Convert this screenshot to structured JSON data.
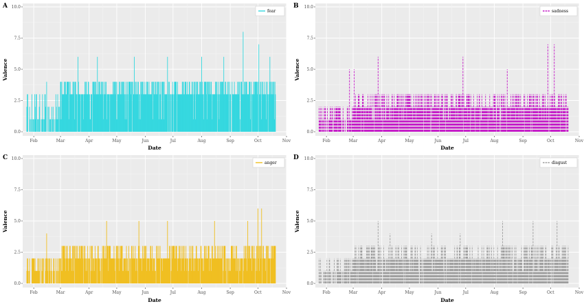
{
  "figure": {
    "background": "#ffffff"
  },
  "chart_data": [
    {
      "panel": "A",
      "type": "bar",
      "series": [
        {
          "name": "fear",
          "color": "#32D7DF",
          "dashed": false
        }
      ],
      "xlabel": "Date",
      "ylabel": "Valence",
      "ylim": [
        0,
        10
      ],
      "yticks": [
        "0.0",
        "2.5",
        "5.0",
        "7.5",
        "10.0"
      ],
      "xlim": [
        "2020-01-20",
        "2020-11-01"
      ],
      "xticks": [
        "Feb",
        "Mar",
        "Apr",
        "May",
        "Jun",
        "Jul",
        "Aug",
        "Sep",
        "Oct",
        "Nov"
      ],
      "data_range": [
        "2020-01-24",
        "2020-10-20"
      ],
      "typical_value": 3,
      "peaks": [
        {
          "date": "2020-02-15",
          "value": 4
        },
        {
          "date": "2020-03-20",
          "value": 6
        },
        {
          "date": "2020-04-10",
          "value": 6
        },
        {
          "date": "2020-05-20",
          "value": 6
        },
        {
          "date": "2020-06-25",
          "value": 6
        },
        {
          "date": "2020-08-01",
          "value": 6
        },
        {
          "date": "2020-08-25",
          "value": 6
        },
        {
          "date": "2020-09-15",
          "value": 8
        },
        {
          "date": "2020-10-02",
          "value": 7
        },
        {
          "date": "2020-10-14",
          "value": 6
        }
      ],
      "legend_position": "top-right",
      "grid": true
    },
    {
      "panel": "B",
      "type": "bar",
      "series": [
        {
          "name": "sadness",
          "color": "#C41AC7",
          "dashed": true
        }
      ],
      "xlabel": "Date",
      "ylabel": "Valence",
      "ylim": [
        0,
        10
      ],
      "yticks": [
        "0.0",
        "2.5",
        "5.0",
        "7.5",
        "10.0"
      ],
      "xlim": [
        "2020-01-20",
        "2020-11-01"
      ],
      "xticks": [
        "Feb",
        "Mar",
        "Apr",
        "May",
        "Jun",
        "Jul",
        "Aug",
        "Sep",
        "Oct",
        "Nov"
      ],
      "data_range": [
        "2020-01-24",
        "2020-10-20"
      ],
      "typical_value": 2,
      "peaks": [
        {
          "date": "2020-02-26",
          "value": 5
        },
        {
          "date": "2020-03-02",
          "value": 5
        },
        {
          "date": "2020-03-28",
          "value": 6
        },
        {
          "date": "2020-06-28",
          "value": 6
        },
        {
          "date": "2020-08-15",
          "value": 5
        },
        {
          "date": "2020-09-28",
          "value": 7
        },
        {
          "date": "2020-10-05",
          "value": 7
        }
      ],
      "legend_position": "top-right",
      "grid": true
    },
    {
      "panel": "C",
      "type": "bar",
      "series": [
        {
          "name": "anger",
          "color": "#F0BE1E",
          "dashed": false
        }
      ],
      "xlabel": "Date",
      "ylabel": "Valence",
      "ylim": [
        0,
        10
      ],
      "yticks": [
        "0.0",
        "2.5",
        "5.0",
        "7.5",
        "10.0"
      ],
      "xlim": [
        "2020-01-20",
        "2020-11-01"
      ],
      "xticks": [
        "Feb",
        "Mar",
        "Apr",
        "May",
        "Jun",
        "Jul",
        "Aug",
        "Sep",
        "Oct",
        "Nov"
      ],
      "data_range": [
        "2020-01-24",
        "2020-10-20"
      ],
      "typical_value": 2,
      "peaks": [
        {
          "date": "2020-02-15",
          "value": 4
        },
        {
          "date": "2020-04-20",
          "value": 5
        },
        {
          "date": "2020-05-25",
          "value": 5
        },
        {
          "date": "2020-06-25",
          "value": 5
        },
        {
          "date": "2020-08-15",
          "value": 5
        },
        {
          "date": "2020-09-20",
          "value": 5
        },
        {
          "date": "2020-10-01",
          "value": 6
        },
        {
          "date": "2020-10-05",
          "value": 6
        }
      ],
      "legend_position": "top-right",
      "grid": true
    },
    {
      "panel": "D",
      "type": "bar",
      "series": [
        {
          "name": "disgust",
          "color": "#9E9E9E",
          "dashed": true
        }
      ],
      "xlabel": "Date",
      "ylabel": "Valence",
      "ylim": [
        0,
        10
      ],
      "yticks": [
        "0.0",
        "2.5",
        "5.0",
        "7.5",
        "10.0"
      ],
      "xlim": [
        "2020-01-20",
        "2020-11-01"
      ],
      "xticks": [
        "Feb",
        "Mar",
        "Apr",
        "May",
        "Jun",
        "Jul",
        "Aug",
        "Sep",
        "Oct",
        "Nov"
      ],
      "data_range": [
        "2020-01-24",
        "2020-10-20"
      ],
      "typical_value": 2,
      "peaks": [
        {
          "date": "2020-03-28",
          "value": 5
        },
        {
          "date": "2020-04-10",
          "value": 4
        },
        {
          "date": "2020-05-25",
          "value": 4
        },
        {
          "date": "2020-06-25",
          "value": 4
        },
        {
          "date": "2020-08-10",
          "value": 5
        },
        {
          "date": "2020-09-12",
          "value": 5
        },
        {
          "date": "2020-10-08",
          "value": 5
        }
      ],
      "legend_position": "top-right",
      "grid": true
    }
  ]
}
